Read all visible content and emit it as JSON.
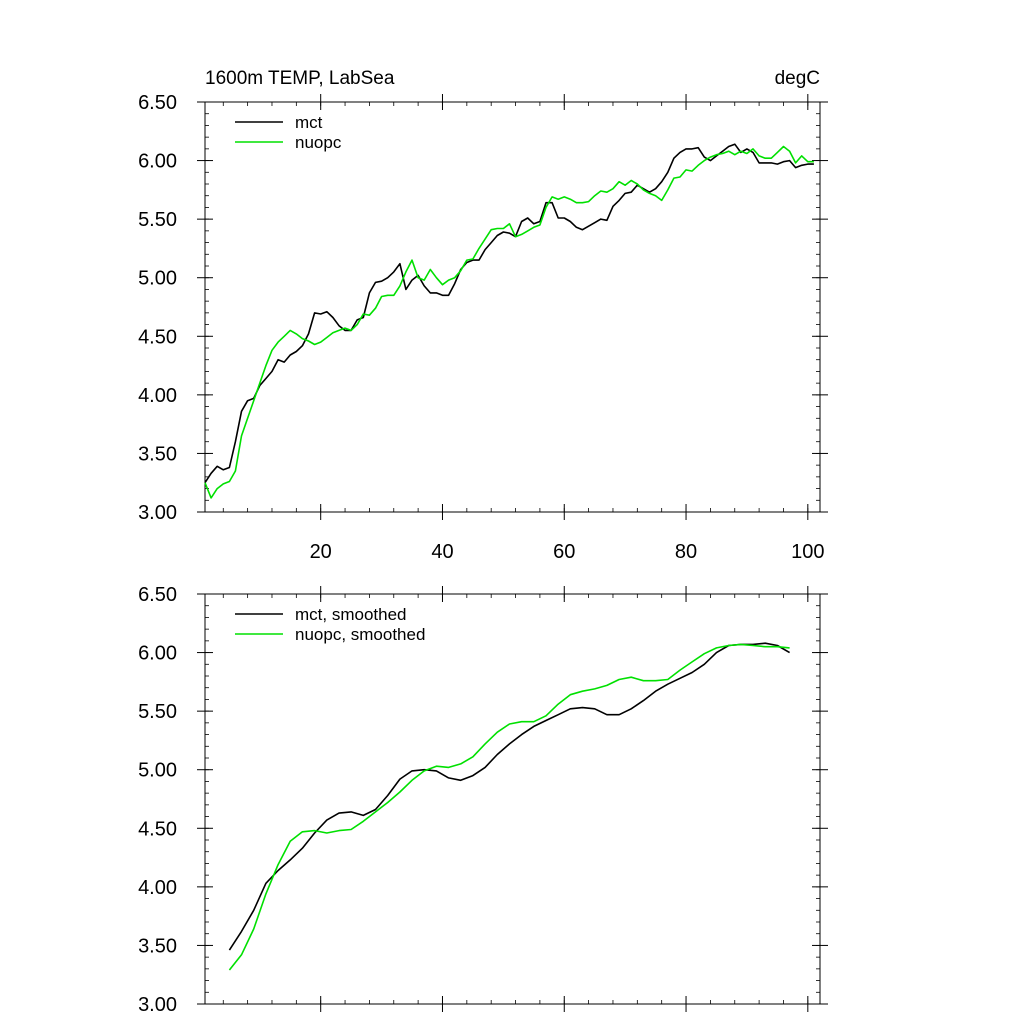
{
  "chart_data": [
    {
      "type": "line",
      "title_left": "1600m TEMP, LabSea",
      "title_right": "degC",
      "xlim": [
        1,
        102
      ],
      "ylim": [
        3.0,
        6.5
      ],
      "xticks": [
        20,
        40,
        60,
        80,
        100
      ],
      "xtick_labels": [
        "20",
        "40",
        "60",
        "80",
        "100"
      ],
      "yticks": [
        3.0,
        3.5,
        4.0,
        4.5,
        5.0,
        5.5,
        6.0,
        6.5
      ],
      "ytick_labels": [
        "3.00",
        "3.50",
        "4.00",
        "4.50",
        "5.00",
        "5.50",
        "6.00",
        "6.50"
      ],
      "legend_position": "top-left",
      "series": [
        {
          "name": "mct",
          "color": "#000000",
          "x": [
            1,
            2,
            3,
            4,
            5,
            6,
            7,
            8,
            9,
            10,
            11,
            12,
            13,
            14,
            15,
            16,
            17,
            18,
            19,
            20,
            21,
            22,
            23,
            24,
            25,
            26,
            27,
            28,
            29,
            30,
            31,
            32,
            33,
            34,
            35,
            36,
            37,
            38,
            39,
            40,
            41,
            42,
            43,
            44,
            45,
            46,
            47,
            48,
            49,
            50,
            51,
            52,
            53,
            54,
            55,
            56,
            57,
            58,
            59,
            60,
            61,
            62,
            63,
            64,
            65,
            66,
            67,
            68,
            69,
            70,
            71,
            72,
            73,
            74,
            75,
            76,
            77,
            78,
            79,
            80,
            81,
            82,
            83,
            84,
            85,
            86,
            87,
            88,
            89,
            90,
            91,
            92,
            93,
            94,
            95,
            96,
            97,
            98,
            99,
            100,
            101
          ],
          "y": [
            3.25,
            3.33,
            3.39,
            3.36,
            3.38,
            3.6,
            3.86,
            3.95,
            3.97,
            4.08,
            4.14,
            4.2,
            4.3,
            4.28,
            4.34,
            4.37,
            4.42,
            4.52,
            4.7,
            4.69,
            4.71,
            4.66,
            4.59,
            4.55,
            4.55,
            4.64,
            4.66,
            4.87,
            4.96,
            4.97,
            5.0,
            5.05,
            5.12,
            4.9,
            4.98,
            5.02,
            4.93,
            4.87,
            4.87,
            4.85,
            4.85,
            4.95,
            5.07,
            5.13,
            5.15,
            5.15,
            5.24,
            5.3,
            5.36,
            5.39,
            5.38,
            5.35,
            5.48,
            5.51,
            5.46,
            5.48,
            5.64,
            5.64,
            5.51,
            5.51,
            5.48,
            5.43,
            5.41,
            5.44,
            5.47,
            5.5,
            5.49,
            5.61,
            5.66,
            5.72,
            5.73,
            5.79,
            5.76,
            5.73,
            5.76,
            5.82,
            5.9,
            6.02,
            6.07,
            6.1,
            6.1,
            6.11,
            6.03,
            6.0,
            6.04,
            6.08,
            6.12,
            6.14,
            6.07,
            6.1,
            6.07,
            5.98,
            5.98,
            5.98,
            5.97,
            5.99,
            6.0,
            5.94,
            5.96,
            5.97,
            5.97
          ]
        },
        {
          "name": "nuopc",
          "color": "#00e000",
          "x": [
            1,
            2,
            3,
            4,
            5,
            6,
            7,
            8,
            9,
            10,
            11,
            12,
            13,
            14,
            15,
            16,
            17,
            18,
            19,
            20,
            21,
            22,
            23,
            24,
            25,
            26,
            27,
            28,
            29,
            30,
            31,
            32,
            33,
            34,
            35,
            36,
            37,
            38,
            39,
            40,
            41,
            42,
            43,
            44,
            45,
            46,
            47,
            48,
            49,
            50,
            51,
            52,
            53,
            54,
            55,
            56,
            57,
            58,
            59,
            60,
            61,
            62,
            63,
            64,
            65,
            66,
            67,
            68,
            69,
            70,
            71,
            72,
            73,
            74,
            75,
            76,
            77,
            78,
            79,
            80,
            81,
            82,
            83,
            84,
            85,
            86,
            87,
            88,
            89,
            90,
            91,
            92,
            93,
            94,
            95,
            96,
            97,
            98,
            99,
            100,
            101
          ],
          "y": [
            3.25,
            3.12,
            3.2,
            3.24,
            3.26,
            3.35,
            3.65,
            3.8,
            3.95,
            4.1,
            4.25,
            4.38,
            4.45,
            4.5,
            4.55,
            4.52,
            4.48,
            4.46,
            4.43,
            4.45,
            4.49,
            4.53,
            4.55,
            4.57,
            4.55,
            4.6,
            4.69,
            4.68,
            4.74,
            4.84,
            4.85,
            4.85,
            4.93,
            5.05,
            5.15,
            5.0,
            4.98,
            5.07,
            5.0,
            4.94,
            4.98,
            5.0,
            5.06,
            5.15,
            5.16,
            5.25,
            5.33,
            5.41,
            5.42,
            5.42,
            5.46,
            5.35,
            5.37,
            5.4,
            5.43,
            5.45,
            5.6,
            5.69,
            5.67,
            5.69,
            5.67,
            5.64,
            5.64,
            5.65,
            5.7,
            5.74,
            5.73,
            5.76,
            5.82,
            5.79,
            5.83,
            5.8,
            5.75,
            5.72,
            5.7,
            5.66,
            5.75,
            5.85,
            5.86,
            5.92,
            5.91,
            5.96,
            6.0,
            6.03,
            6.05,
            6.06,
            6.08,
            6.05,
            6.08,
            6.06,
            6.1,
            6.04,
            6.02,
            6.02,
            6.07,
            6.12,
            6.08,
            5.98,
            6.04,
            5.99,
            5.99
          ]
        }
      ]
    },
    {
      "type": "line",
      "xlim": [
        1,
        102
      ],
      "ylim": [
        3.0,
        6.5
      ],
      "xticks": [
        20,
        40,
        60,
        80,
        100
      ],
      "yticks": [
        3.0,
        3.5,
        4.0,
        4.5,
        5.0,
        5.5,
        6.0,
        6.5
      ],
      "ytick_labels": [
        "3.00",
        "3.50",
        "4.00",
        "4.50",
        "5.00",
        "5.50",
        "6.00",
        "6.50"
      ],
      "legend_position": "top-left",
      "series": [
        {
          "name": "mct, smoothed",
          "color": "#000000",
          "x": [
            5,
            7,
            9,
            11,
            13,
            15,
            17,
            19,
            21,
            23,
            25,
            27,
            29,
            31,
            33,
            35,
            37,
            39,
            41,
            43,
            45,
            47,
            49,
            51,
            53,
            55,
            57,
            59,
            61,
            63,
            65,
            67,
            69,
            71,
            73,
            75,
            77,
            79,
            81,
            83,
            85,
            87,
            89,
            91,
            93,
            95,
            97
          ],
          "y": [
            3.46,
            3.62,
            3.8,
            4.03,
            4.14,
            4.23,
            4.33,
            4.46,
            4.57,
            4.63,
            4.64,
            4.61,
            4.66,
            4.78,
            4.92,
            4.99,
            5.0,
            4.99,
            4.93,
            4.91,
            4.95,
            5.02,
            5.13,
            5.22,
            5.3,
            5.37,
            5.42,
            5.47,
            5.52,
            5.53,
            5.52,
            5.47,
            5.47,
            5.52,
            5.59,
            5.67,
            5.73,
            5.78,
            5.83,
            5.9,
            6.0,
            6.06,
            6.07,
            6.07,
            6.08,
            6.06,
            6.0
          ]
        },
        {
          "name": "nuopc, smoothed",
          "color": "#00e000",
          "x": [
            5,
            7,
            9,
            11,
            13,
            15,
            17,
            19,
            21,
            23,
            25,
            27,
            29,
            31,
            33,
            35,
            37,
            39,
            41,
            43,
            45,
            47,
            49,
            51,
            53,
            55,
            57,
            59,
            61,
            63,
            65,
            67,
            69,
            71,
            73,
            75,
            77,
            79,
            81,
            83,
            85,
            87,
            89,
            91,
            93,
            95,
            97
          ],
          "y": [
            3.29,
            3.42,
            3.64,
            3.94,
            4.19,
            4.39,
            4.47,
            4.48,
            4.46,
            4.48,
            4.49,
            4.56,
            4.64,
            4.72,
            4.81,
            4.91,
            4.99,
            5.03,
            5.02,
            5.05,
            5.11,
            5.22,
            5.32,
            5.39,
            5.41,
            5.41,
            5.46,
            5.56,
            5.64,
            5.67,
            5.69,
            5.72,
            5.77,
            5.79,
            5.76,
            5.76,
            5.77,
            5.85,
            5.92,
            5.99,
            6.04,
            6.06,
            6.07,
            6.06,
            6.05,
            6.05,
            6.04
          ]
        }
      ]
    }
  ]
}
